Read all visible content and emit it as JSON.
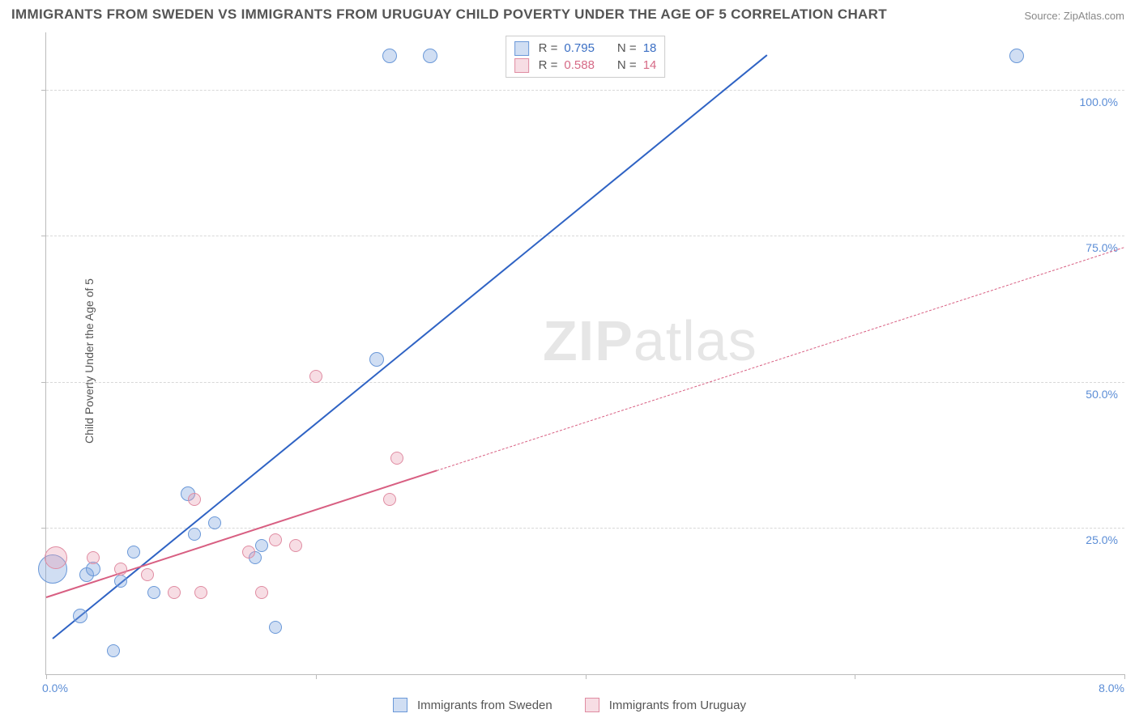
{
  "title": "IMMIGRANTS FROM SWEDEN VS IMMIGRANTS FROM URUGUAY CHILD POVERTY UNDER THE AGE OF 5 CORRELATION CHART",
  "source_prefix": "Source: ",
  "source_name": "ZipAtlas.com",
  "y_axis_label": "Child Poverty Under the Age of 5",
  "watermark_bold": "ZIP",
  "watermark_light": "atlas",
  "chart": {
    "xlim": [
      0,
      8
    ],
    "ylim": [
      0,
      110
    ],
    "x_ticks": [
      0,
      2,
      4,
      6,
      8
    ],
    "x_tick_labels": {
      "0": "0.0%",
      "8": "8.0%"
    },
    "y_gridlines": [
      25,
      50,
      75,
      100
    ],
    "y_tick_labels": {
      "25": "25.0%",
      "50": "50.0%",
      "75": "75.0%",
      "100": "100.0%"
    },
    "background_color": "#ffffff",
    "grid_color": "#d8d8d8",
    "axis_color": "#bbbbbb",
    "label_color": "#5b8dd6"
  },
  "series": [
    {
      "name": "Immigrants from Sweden",
      "fill": "rgba(120,160,220,0.35)",
      "stroke": "#6a98d8",
      "line_color": "#2f63c4",
      "r_value": "0.795",
      "n_value": "18",
      "trend": {
        "x1": 0.05,
        "y1": 6,
        "x2": 5.35,
        "y2": 106,
        "dashed_from": null
      },
      "points": [
        {
          "x": 0.05,
          "y": 18,
          "r": 18
        },
        {
          "x": 0.25,
          "y": 10,
          "r": 9
        },
        {
          "x": 0.3,
          "y": 17,
          "r": 9
        },
        {
          "x": 0.35,
          "y": 18,
          "r": 9
        },
        {
          "x": 0.5,
          "y": 4,
          "r": 8
        },
        {
          "x": 0.55,
          "y": 16,
          "r": 8
        },
        {
          "x": 0.65,
          "y": 21,
          "r": 8
        },
        {
          "x": 0.8,
          "y": 14,
          "r": 8
        },
        {
          "x": 1.05,
          "y": 31,
          "r": 9
        },
        {
          "x": 1.1,
          "y": 24,
          "r": 8
        },
        {
          "x": 1.25,
          "y": 26,
          "r": 8
        },
        {
          "x": 1.55,
          "y": 20,
          "r": 8
        },
        {
          "x": 1.6,
          "y": 22,
          "r": 8
        },
        {
          "x": 1.7,
          "y": 8,
          "r": 8
        },
        {
          "x": 2.45,
          "y": 54,
          "r": 9
        },
        {
          "x": 2.55,
          "y": 106,
          "r": 9
        },
        {
          "x": 2.85,
          "y": 106,
          "r": 9
        },
        {
          "x": 7.2,
          "y": 106,
          "r": 9
        }
      ]
    },
    {
      "name": "Immigrants from Uruguay",
      "fill": "rgba(230,150,170,0.32)",
      "stroke": "#e08ca2",
      "line_color": "#d85f82",
      "r_value": "0.588",
      "n_value": "14",
      "trend": {
        "x1": 0.0,
        "y1": 13,
        "x2": 8.0,
        "y2": 73,
        "dashed_from": 2.9
      },
      "points": [
        {
          "x": 0.07,
          "y": 20,
          "r": 14
        },
        {
          "x": 0.35,
          "y": 20,
          "r": 8
        },
        {
          "x": 0.55,
          "y": 18,
          "r": 8
        },
        {
          "x": 0.75,
          "y": 17,
          "r": 8
        },
        {
          "x": 0.95,
          "y": 14,
          "r": 8
        },
        {
          "x": 1.1,
          "y": 30,
          "r": 8
        },
        {
          "x": 1.15,
          "y": 14,
          "r": 8
        },
        {
          "x": 1.5,
          "y": 21,
          "r": 8
        },
        {
          "x": 1.6,
          "y": 14,
          "r": 8
        },
        {
          "x": 1.7,
          "y": 23,
          "r": 8
        },
        {
          "x": 1.85,
          "y": 22,
          "r": 8
        },
        {
          "x": 2.0,
          "y": 51,
          "r": 8
        },
        {
          "x": 2.55,
          "y": 30,
          "r": 8
        },
        {
          "x": 2.6,
          "y": 37,
          "r": 8
        }
      ]
    }
  ],
  "legend_top": {
    "r_label": "R =",
    "n_label": "N ="
  },
  "legend_bottom_labels": [
    "Immigrants from Sweden",
    "Immigrants from Uruguay"
  ]
}
